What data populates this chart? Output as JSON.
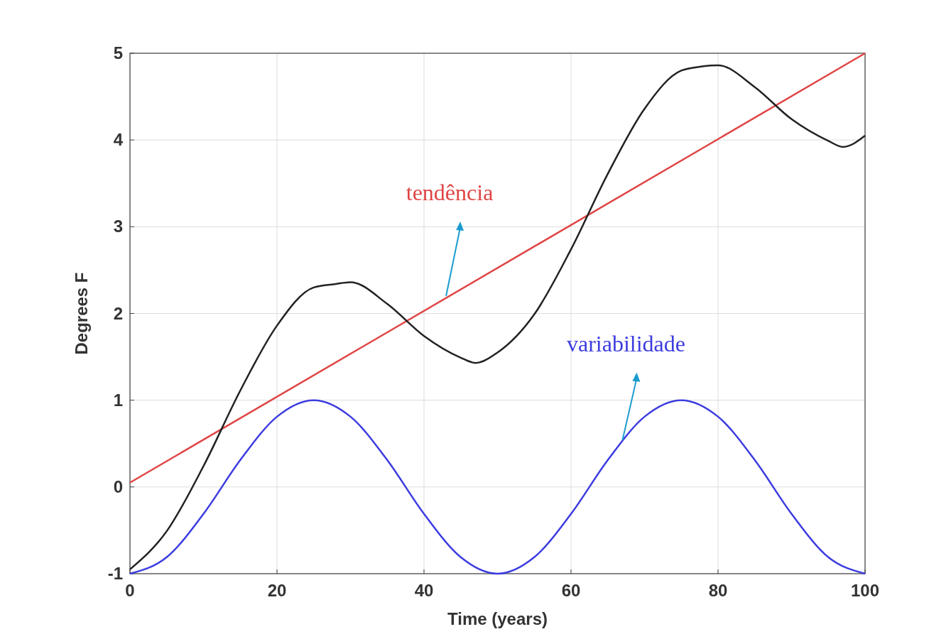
{
  "chart_data": {
    "type": "line",
    "xlabel": "Time (years)",
    "ylabel": "Degrees F",
    "xlim": [
      0,
      100
    ],
    "ylim": [
      -1,
      5
    ],
    "xticks": [
      0,
      20,
      40,
      60,
      80,
      100
    ],
    "yticks": [
      -1,
      0,
      1,
      2,
      3,
      4,
      5
    ],
    "grid": true,
    "marker": "none",
    "line_style": "solid",
    "series": [
      {
        "color": "#e04545",
        "x": [
          0,
          100
        ],
        "values": [
          0.05,
          5
        ]
      },
      {
        "color": "#3c3ce0",
        "x": [
          0,
          5,
          10,
          15,
          20,
          25,
          30,
          35,
          40,
          45,
          50,
          55,
          60,
          65,
          70,
          75,
          80,
          85,
          90,
          95,
          100
        ],
        "values": [
          -1,
          -0.81,
          -0.31,
          0.31,
          0.81,
          1,
          0.81,
          0.31,
          -0.31,
          -0.81,
          -1,
          -0.81,
          -0.31,
          0.31,
          0.81,
          1,
          0.81,
          0.31,
          -0.31,
          -0.81,
          -1
        ]
      },
      {
        "color": "#222222",
        "x": [
          0,
          5,
          10,
          15,
          20,
          25,
          28,
          30,
          35,
          40,
          45,
          47,
          50,
          55,
          60,
          65,
          70,
          75,
          78,
          80,
          85,
          90,
          95,
          97,
          100
        ],
        "values": [
          -0.95,
          -0.51,
          0.24,
          1.11,
          1.86,
          2.3,
          2.34,
          2.36,
          2.11,
          1.74,
          1.49,
          1.43,
          1.55,
          1.99,
          2.74,
          3.61,
          4.36,
          4.8,
          4.85,
          4.86,
          4.61,
          4.24,
          3.99,
          3.92,
          4.05
        ]
      }
    ],
    "annotations": [
      {
        "text": "tendência",
        "x": 43,
        "y": 2.2
      },
      {
        "text": "variabilidade",
        "x": 67,
        "y": 0.54
      }
    ]
  }
}
